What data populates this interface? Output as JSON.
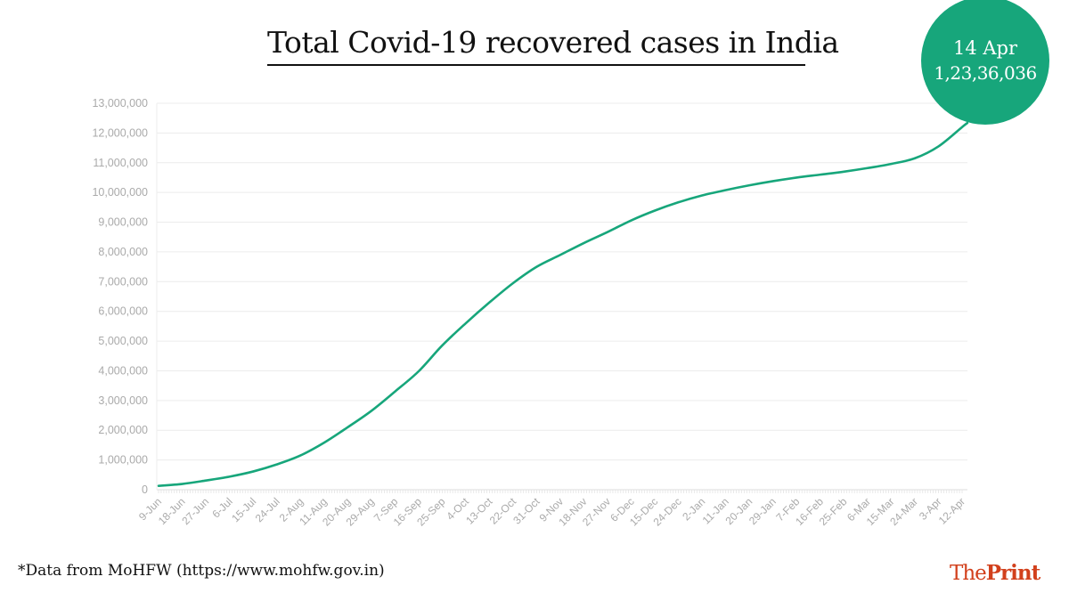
{
  "title": "Total Covid-19 recovered cases in India",
  "badge": {
    "date": "14 Apr",
    "value": "1,23,36,036"
  },
  "source": "*Data from MoHFW (https://www.mohfw.gov.in)",
  "logo": {
    "the": "The",
    "print": "Print"
  },
  "colors": {
    "line": "#17a67b",
    "badge": "#17a67b",
    "logo": "#d2401c",
    "grid": "#ececec"
  },
  "chart_data": {
    "type": "line",
    "title": "Total Covid-19 recovered cases in India",
    "xlabel": "",
    "ylabel": "",
    "ylim": [
      0,
      13000000
    ],
    "yticks": [
      0,
      1000000,
      2000000,
      3000000,
      4000000,
      5000000,
      6000000,
      7000000,
      8000000,
      9000000,
      10000000,
      11000000,
      12000000,
      13000000
    ],
    "ytick_labels": [
      "0",
      "1,000,000",
      "2,000,000",
      "3,000,000",
      "4,000,000",
      "5,000,000",
      "6,000,000",
      "7,000,000",
      "8,000,000",
      "9,000,000",
      "10,000,000",
      "11,000,000",
      "12,000,000",
      "13,000,000"
    ],
    "xtick_labels": [
      "9-Jun",
      "18-Jun",
      "27-Jun",
      "6-Jul",
      "15-Jul",
      "24-Jul",
      "2-Aug",
      "11-Aug",
      "20-Aug",
      "29-Aug",
      "7-Sep",
      "16-Sep",
      "25-Sep",
      "4-Oct",
      "13-Oct",
      "22-Oct",
      "31-Oct",
      "9-Nov",
      "18-Nov",
      "27-Nov",
      "6-Dec",
      "15-Dec",
      "24-Dec",
      "2-Jan",
      "11-Jan",
      "20-Jan",
      "29-Jan",
      "7-Feb",
      "16-Feb",
      "25-Feb",
      "6-Mar",
      "15-Mar",
      "24-Mar",
      "3-Apr",
      "12-Apr"
    ],
    "grid": true,
    "series": [
      {
        "name": "Recovered cases",
        "x_index": [
          0,
          1,
          2,
          3,
          4,
          5,
          6,
          7,
          8,
          9,
          10,
          11,
          12,
          13,
          14,
          15,
          16,
          17,
          18,
          19,
          20,
          21,
          22,
          23,
          24,
          25,
          26,
          27,
          28,
          29,
          30,
          31,
          32,
          33,
          34,
          34.22
        ],
        "values": [
          130000,
          194000,
          309000,
          439000,
          612000,
          849000,
          1150000,
          1580000,
          2100000,
          2650000,
          3300000,
          3980000,
          4850000,
          5600000,
          6300000,
          6950000,
          7500000,
          7900000,
          8300000,
          8670000,
          9060000,
          9390000,
          9670000,
          9900000,
          10080000,
          10240000,
          10380000,
          10500000,
          10600000,
          10700000,
          10820000,
          10960000,
          11150000,
          11550000,
          12200000,
          12336036
        ]
      }
    ]
  }
}
